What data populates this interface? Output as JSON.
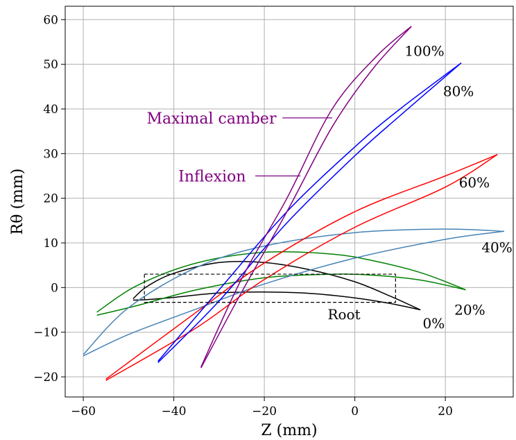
{
  "chart_data": {
    "type": "line",
    "title": "",
    "xlabel": "Z (mm)",
    "ylabel": "Rθ (mm)",
    "xlim": [
      -64,
      35
    ],
    "ylim": [
      -24.5,
      63
    ],
    "xticks": [
      -60,
      -40,
      -20,
      0,
      20
    ],
    "yticks": [
      -20,
      -10,
      0,
      10,
      20,
      30,
      40,
      50,
      60
    ],
    "xtick_labels": [
      "−60",
      "−40",
      "−20",
      "0",
      "20"
    ],
    "ytick_labels": [
      "−20",
      "−10",
      "0",
      "10",
      "20",
      "30",
      "40",
      "50",
      "60"
    ],
    "grid": true,
    "series": [
      {
        "label": "Root",
        "color": "#000000",
        "label_pos": [
          -6,
          -6
        ],
        "upper": [
          [
            14.5,
            -5.0
          ],
          [
            8,
            -2.0
          ],
          [
            0,
            1.3
          ],
          [
            -10,
            4.0
          ],
          [
            -20,
            5.6
          ],
          [
            -30,
            5.6
          ],
          [
            -40,
            3.2
          ],
          [
            -46,
            0.2
          ],
          [
            -49,
            -2.5
          ]
        ],
        "lower": [
          [
            14.5,
            -5.0
          ],
          [
            8,
            -3.6
          ],
          [
            0,
            -2.3
          ],
          [
            -10,
            -1.3
          ],
          [
            -20,
            -1.0
          ],
          [
            -30,
            -1.2
          ],
          [
            -40,
            -2.2
          ],
          [
            -46,
            -2.7
          ],
          [
            -49,
            -2.8
          ]
        ]
      },
      {
        "label": "0%",
        "color": "#000000",
        "label_pos": [
          15,
          -8
        ],
        "upper": [],
        "lower": []
      },
      {
        "label": "20%",
        "color": "#008000",
        "label_pos": [
          22,
          -5
        ],
        "upper": [
          [
            24.5,
            -0.5
          ],
          [
            15,
            3.2
          ],
          [
            5,
            5.8
          ],
          [
            -5,
            7.5
          ],
          [
            -20,
            7.9
          ],
          [
            -35,
            5.5
          ],
          [
            -48,
            0.5
          ],
          [
            -57,
            -5.5
          ]
        ],
        "lower": [
          [
            24.5,
            -0.5
          ],
          [
            15,
            1.6
          ],
          [
            5,
            2.7
          ],
          [
            -5,
            3.0
          ],
          [
            -20,
            2.2
          ],
          [
            -35,
            -0.5
          ],
          [
            -48,
            -4.0
          ],
          [
            -57,
            -6.2
          ]
        ]
      },
      {
        "label": "40%",
        "color": "#4682b4",
        "label_pos": [
          28,
          9
        ],
        "upper": [
          [
            33,
            12.6
          ],
          [
            20,
            13.1
          ],
          [
            0,
            12.3
          ],
          [
            -20,
            9.3
          ],
          [
            -35,
            4.5
          ],
          [
            -50,
            -4.5
          ],
          [
            -60,
            -15.0
          ]
        ],
        "lower": [
          [
            33,
            12.6
          ],
          [
            20,
            10.8
          ],
          [
            0,
            6.6
          ],
          [
            -20,
            0.8
          ],
          [
            -35,
            -4.8
          ],
          [
            -50,
            -10.5
          ],
          [
            -60,
            -15.3
          ]
        ]
      },
      {
        "label": "60%",
        "color": "#ff0000",
        "label_pos": [
          23,
          23.5
        ],
        "upper": [
          [
            31.5,
            29.8
          ],
          [
            20,
            25.0
          ],
          [
            0,
            17.0
          ],
          [
            -20,
            5.5
          ],
          [
            -35,
            -5.5
          ],
          [
            -55,
            -20.5
          ]
        ],
        "lower": [
          [
            31.5,
            29.8
          ],
          [
            20,
            22.5
          ],
          [
            0,
            13.5
          ],
          [
            -20,
            1.8
          ],
          [
            -35,
            -9.0
          ],
          [
            -55,
            -20.8
          ]
        ]
      },
      {
        "label": "80%",
        "color": "#0000ff",
        "label_pos": [
          19.5,
          44
        ],
        "upper": [
          [
            23.5,
            50.3
          ],
          [
            10,
            40.0
          ],
          [
            0,
            31.5
          ],
          [
            -15,
            17.0
          ],
          [
            -30,
            -0.5
          ],
          [
            -43.5,
            -16.5
          ]
        ],
        "lower": [
          [
            23.5,
            50.3
          ],
          [
            10,
            38.5
          ],
          [
            0,
            29.5
          ],
          [
            -15,
            14.5
          ],
          [
            -30,
            -3.0
          ],
          [
            -43.5,
            -16.8
          ]
        ]
      },
      {
        "label": "100%",
        "color": "#800080",
        "label_pos": [
          11,
          53
        ],
        "upper": [
          [
            12.5,
            58.5
          ],
          [
            5,
            52.0
          ],
          [
            -5,
            40.0
          ],
          [
            -15,
            20.0
          ],
          [
            -25,
            2.0
          ],
          [
            -34,
            -17.8
          ]
        ],
        "lower": [
          [
            12.5,
            58.5
          ],
          [
            4,
            49.0
          ],
          [
            -5,
            36.0
          ],
          [
            -15,
            17.0
          ],
          [
            -25,
            -1.0
          ],
          [
            -34,
            -18.0
          ]
        ]
      }
    ],
    "annotations": [
      {
        "text": "Maximal camber",
        "color": "#800080",
        "text_pos": [
          -46,
          38
        ],
        "line": [
          [
            -16,
            38
          ],
          [
            -5,
            38
          ]
        ]
      },
      {
        "text": "Inflexion",
        "color": "#800080",
        "text_pos": [
          -39,
          25
        ],
        "line": [
          [
            -22,
            25
          ],
          [
            -12,
            25
          ]
        ]
      }
    ],
    "root_box": {
      "x": [
        -46.5,
        9
      ],
      "y": [
        -3.3,
        3.0
      ]
    }
  }
}
